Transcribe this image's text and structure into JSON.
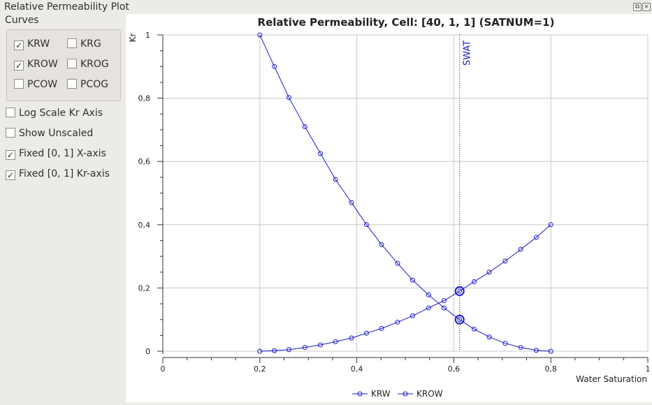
{
  "dock": {
    "title": "Relative Permeability Plot"
  },
  "curves_group": {
    "label": "Curves",
    "items": [
      {
        "label": "KRW",
        "checked": true
      },
      {
        "label": "KRG",
        "checked": false
      },
      {
        "label": "KROW",
        "checked": true
      },
      {
        "label": "KROG",
        "checked": false
      },
      {
        "label": "PCOW",
        "checked": false
      },
      {
        "label": "PCOG",
        "checked": false
      }
    ]
  },
  "options": [
    {
      "label": "Log Scale Kr Axis",
      "checked": false
    },
    {
      "label": "Show Unscaled",
      "checked": false
    },
    {
      "label": "Fixed [0, 1] X-axis",
      "checked": true
    },
    {
      "label": "Fixed [0, 1] Kr-axis",
      "checked": true
    }
  ],
  "colors": {
    "curve": "#1a1acc",
    "grid": "#c8c8c8",
    "text": "#222222"
  },
  "chart_data": {
    "type": "line",
    "title": "Relative Permeability, Cell: [40, 1, 1] (SATNUM=1)",
    "xlabel": "Water Saturation",
    "ylabel": "Kr",
    "xlim": [
      0,
      1
    ],
    "ylim": [
      0,
      1
    ],
    "x_ticks": [
      "0",
      "0,2",
      "0,4",
      "0,6",
      "0,8",
      "1"
    ],
    "y_ticks": [
      "0",
      "0,2",
      "0,4",
      "0,6",
      "0,8",
      "1"
    ],
    "grid": true,
    "legend": "bottom-center",
    "marker_line": {
      "x": 0.612,
      "label": "SWAT"
    },
    "series": [
      {
        "name": "KRW",
        "x": [
          0.2,
          0.23,
          0.26,
          0.293,
          0.325,
          0.356,
          0.389,
          0.42,
          0.451,
          0.484,
          0.515,
          0.548,
          0.58,
          0.612,
          0.642,
          0.673,
          0.706,
          0.738,
          0.77,
          0.8
        ],
        "y": [
          0.0,
          0.002,
          0.005,
          0.012,
          0.02,
          0.03,
          0.042,
          0.057,
          0.072,
          0.092,
          0.112,
          0.137,
          0.16,
          0.19,
          0.22,
          0.25,
          0.285,
          0.322,
          0.36,
          0.4
        ],
        "highlight": {
          "x": 0.612,
          "y": 0.19
        }
      },
      {
        "name": "KROW",
        "x": [
          0.2,
          0.23,
          0.26,
          0.293,
          0.325,
          0.356,
          0.389,
          0.42,
          0.451,
          0.484,
          0.515,
          0.548,
          0.58,
          0.612,
          0.642,
          0.673,
          0.706,
          0.738,
          0.77,
          0.8
        ],
        "y": [
          1.0,
          0.9,
          0.802,
          0.71,
          0.625,
          0.543,
          0.47,
          0.4,
          0.337,
          0.278,
          0.225,
          0.178,
          0.137,
          0.1,
          0.07,
          0.045,
          0.025,
          0.012,
          0.003,
          0.0
        ],
        "highlight": {
          "x": 0.612,
          "y": 0.1
        }
      }
    ]
  }
}
